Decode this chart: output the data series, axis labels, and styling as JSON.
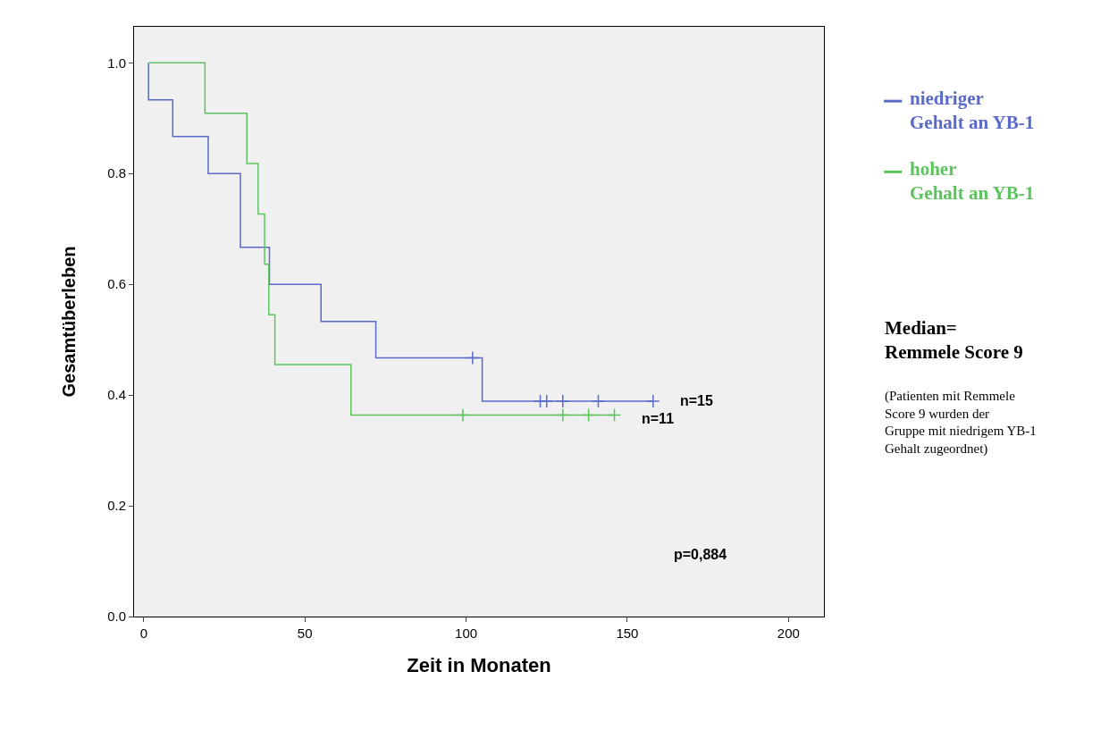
{
  "chart_data": {
    "type": "step",
    "xlabel": "Zeit in Monaten",
    "ylabel": "Gesamtüberleben",
    "xlim": [
      -3,
      211
    ],
    "ylim": [
      0,
      1.065
    ],
    "xticks": [
      0,
      50,
      100,
      150,
      200
    ],
    "yticks": [
      {
        "value": 0,
        "label": "0.0"
      },
      {
        "value": 0.2,
        "label": "0.2"
      },
      {
        "value": 0.4,
        "label": "0.4"
      },
      {
        "value": 0.6,
        "label": "0.6"
      },
      {
        "value": 0.8,
        "label": "0.8"
      },
      {
        "value": 1,
        "label": "1.0"
      }
    ],
    "grid": false,
    "legend": "right",
    "series": [
      {
        "name": "niedriger Gehalt an YB-1",
        "color": "#5a6ac8",
        "x": [
          1.5,
          1.5,
          9,
          20,
          30,
          39,
          55,
          72,
          105,
          158
        ],
        "values": [
          1,
          0.933,
          0.867,
          0.8,
          0.667,
          0.6,
          0.533,
          0.467,
          0.389,
          0.389
        ]
      },
      {
        "name": "hoher Gehalt an YB-1",
        "color": "#5cc45c",
        "x": [
          1.5,
          19,
          32,
          35.5,
          37.5,
          38.8,
          40.7,
          64.3,
          146
        ],
        "values": [
          1,
          0.909,
          0.818,
          0.727,
          0.636,
          0.545,
          0.455,
          0.364,
          0.364
        ]
      },
      {
        "type": "scatter",
        "marker": "cross",
        "color": "#5a6ac8",
        "x": [
          102,
          123,
          125,
          130,
          141,
          158
        ],
        "values": [
          0.467,
          0.389,
          0.389,
          0.389,
          0.389,
          0.389
        ]
      },
      {
        "type": "scatter",
        "marker": "cross",
        "color": "#5cc45c",
        "x": [
          99,
          130,
          138,
          146
        ],
        "values": [
          0.364,
          0.364,
          0.364,
          0.364
        ]
      }
    ],
    "annotations": [
      {
        "text": "n=15",
        "x": 158,
        "y": 0.389
      },
      {
        "text": "n=11",
        "x": 146,
        "y": 0.364
      },
      "p=0,884",
      "Median= Remmele Score 9",
      "(Patienten mit Remmele Score 9 wurden der Gruppe mit niedrigem YB-1 Gehalt zugeordnet)"
    ]
  }
}
